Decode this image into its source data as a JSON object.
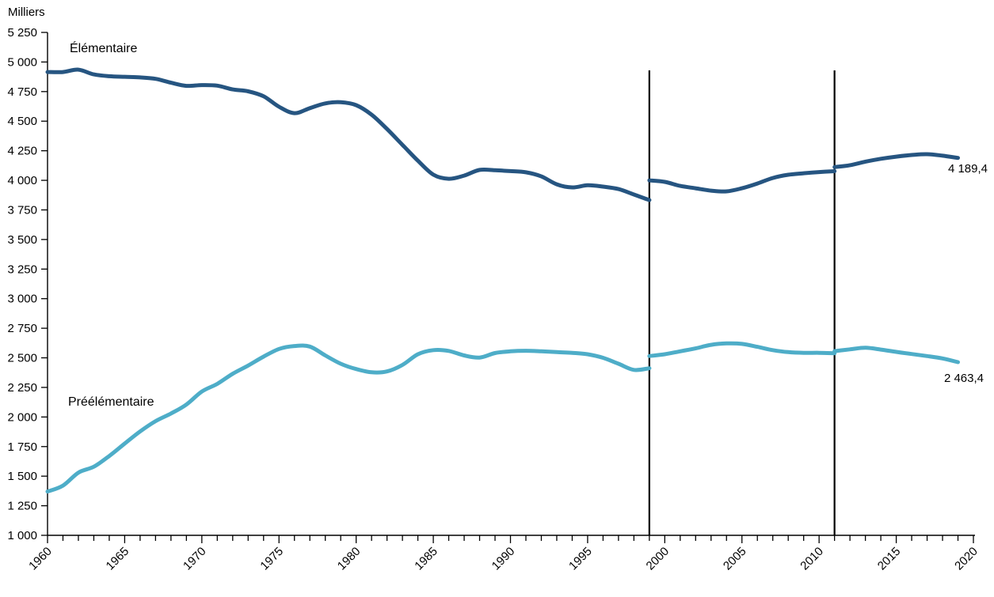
{
  "chart_data": {
    "type": "line",
    "title": "",
    "unit_label": "Milliers",
    "grid": false,
    "legend_position": "inline-labels-on-chart",
    "x_axis": {
      "min": 1960,
      "max": 2020,
      "major_tick_step": 5,
      "minor_tick_step": 1,
      "tick_labels": [
        "1960",
        "1965",
        "1970",
        "1975",
        "1980",
        "1985",
        "1990",
        "1995",
        "2000",
        "2005",
        "2010",
        "2015",
        "2020"
      ],
      "tick_label_rotation_deg": -45
    },
    "y_axis": {
      "min": 1000,
      "max": 5250,
      "tick_step": 250,
      "tick_labels": [
        "1 000",
        "1 250",
        "1 500",
        "1 750",
        "2 000",
        "2 250",
        "2 500",
        "2 750",
        "3 000",
        "3 250",
        "3 500",
        "3 750",
        "4 000",
        "4 250",
        "4 500",
        "4 750",
        "5 000",
        "5 250"
      ]
    },
    "break_lines": [
      {
        "year": 1999,
        "color": "#000000"
      },
      {
        "year": 2011,
        "color": "#000000"
      }
    ],
    "series": [
      {
        "name": "Élémentaire",
        "color": "#265581",
        "end_label": "4 189,4",
        "final_value": 4189.4,
        "segments": [
          {
            "start_year": 1960,
            "values": [
              4915,
              4915,
              4935,
              4895,
              4880,
              4875,
              4870,
              4858,
              4825,
              4798,
              4805,
              4800,
              4768,
              4752,
              4710,
              4622,
              4568,
              4610,
              4650,
              4660,
              4635,
              4555,
              4434,
              4300,
              4166,
              4048,
              4013,
              4040,
              4088,
              4085,
              4078,
              4068,
              4033,
              3966,
              3940,
              3958,
              3947,
              3926,
              3880,
              3833
            ]
          },
          {
            "start_year": 1999,
            "values": [
              4000,
              3987,
              3953,
              3933,
              3913,
              3907,
              3933,
              3973,
              4020,
              4047,
              4060,
              4070,
              4077
            ]
          },
          {
            "start_year": 2011,
            "values": [
              4112,
              4128,
              4158,
              4182,
              4200,
              4214,
              4221,
              4208,
              4189.4
            ]
          }
        ]
      },
      {
        "name": "Préélémentaire",
        "color": "#4EADC8",
        "end_label": "2 463,4",
        "final_value": 2463.4,
        "segments": [
          {
            "start_year": 1960,
            "values": [
              1370,
              1420,
              1530,
              1580,
              1670,
              1775,
              1878,
              1965,
              2030,
              2105,
              2215,
              2280,
              2365,
              2435,
              2510,
              2575,
              2600,
              2595,
              2520,
              2450,
              2405,
              2378,
              2385,
              2440,
              2530,
              2565,
              2558,
              2520,
              2502,
              2540,
              2555,
              2560,
              2555,
              2548,
              2542,
              2530,
              2500,
              2450,
              2398,
              2412
            ]
          },
          {
            "start_year": 1999,
            "values": [
              2515,
              2530,
              2555,
              2580,
              2610,
              2622,
              2618,
              2593,
              2565,
              2548,
              2542,
              2542,
              2538
            ]
          },
          {
            "start_year": 2011,
            "values": [
              2557,
              2572,
              2585,
              2570,
              2550,
              2532,
              2515,
              2495,
              2463.4
            ]
          }
        ]
      }
    ]
  }
}
